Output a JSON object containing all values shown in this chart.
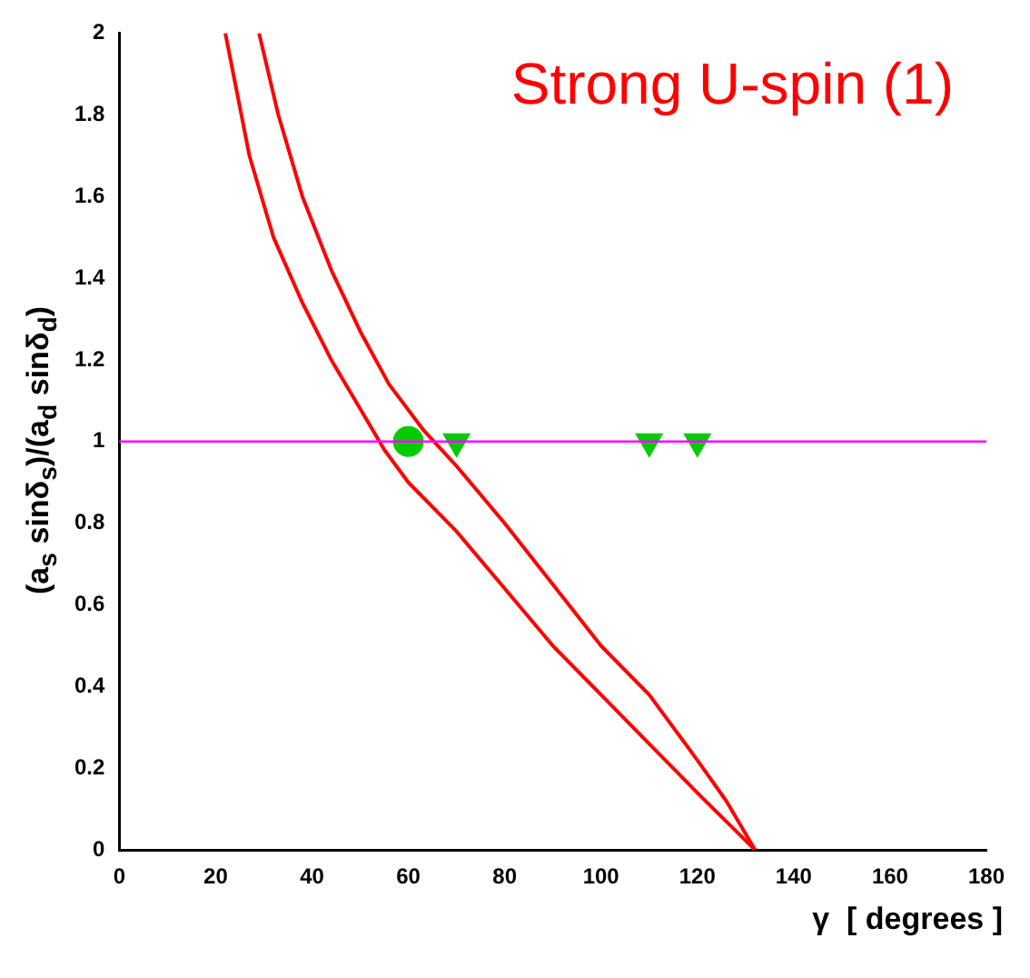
{
  "chart_data": {
    "type": "line",
    "xlabel": "γ  [ degrees ]",
    "ylabel": "(a$_{s}$ sinδ$_{s}$)/(a$_{d}$ sinδ$_{d}$)",
    "annotations": [
      "Strong U-spin (1)"
    ],
    "xlim": [
      0,
      180
    ],
    "xticks": [
      0,
      20,
      40,
      60,
      80,
      100,
      120,
      140,
      160,
      180
    ],
    "ylim": [
      0,
      2
    ],
    "yticks": [
      0,
      0.2,
      0.4,
      0.6,
      0.8,
      1,
      1.2,
      1.4,
      1.6,
      1.8,
      2
    ],
    "grid": false,
    "legend": false,
    "ref_lines": [
      {
        "axis": "y",
        "value": 1,
        "color": "#ff00ff"
      }
    ],
    "series": [
      {
        "marker": "none",
        "color": "#ff0000",
        "x": [
          22,
          27,
          32,
          38,
          44,
          50,
          55,
          60,
          70,
          80,
          90,
          100,
          110,
          120,
          132
        ],
        "values": [
          2,
          1.7,
          1.5,
          1.34,
          1.2,
          1.08,
          0.98,
          0.9,
          0.78,
          0.64,
          0.5,
          0.38,
          0.26,
          0.14,
          0
        ]
      },
      {
        "marker": "none",
        "color": "#ff0000",
        "x": [
          29,
          33,
          38,
          44,
          50,
          56,
          63,
          70,
          80,
          90,
          100,
          110,
          120,
          126,
          132
        ],
        "values": [
          2,
          1.8,
          1.6,
          1.42,
          1.27,
          1.14,
          1.03,
          0.94,
          0.8,
          0.65,
          0.5,
          0.38,
          0.22,
          0.12,
          0
        ]
      },
      {
        "type": "scatter",
        "marker": "circle",
        "color": "#00cc00",
        "x": [
          60
        ],
        "values": [
          1
        ]
      },
      {
        "type": "scatter",
        "marker": "triangle",
        "color": "#00cc00",
        "x": [
          70,
          110,
          120
        ],
        "values": [
          1,
          1,
          1
        ]
      }
    ]
  }
}
